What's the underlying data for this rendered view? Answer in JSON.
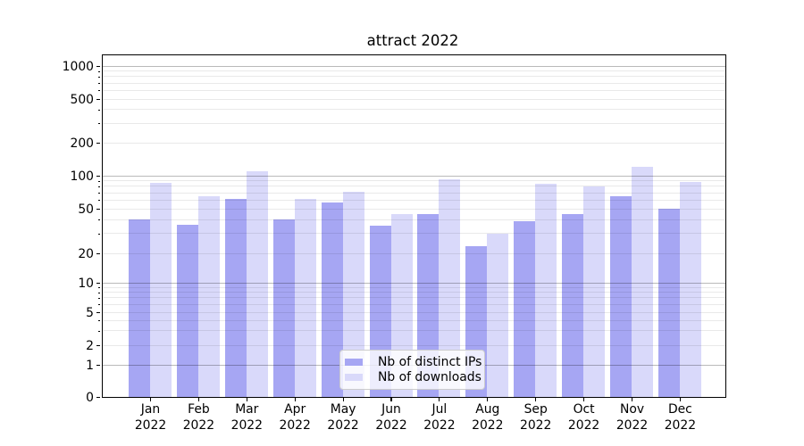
{
  "chart_data": {
    "type": "bar",
    "title": "attract 2022",
    "categories": [
      "Jan",
      "Feb",
      "Mar",
      "Apr",
      "May",
      "Jun",
      "Jul",
      "Aug",
      "Sep",
      "Oct",
      "Nov",
      "Dec"
    ],
    "year": "2022",
    "series": [
      {
        "name": "Nb of distinct IPs",
        "color": "#a6a6f3",
        "values": [
          40,
          36,
          61,
          40,
          57,
          35,
          45,
          23,
          39,
          45,
          65,
          50
        ]
      },
      {
        "name": "Nb of downloads",
        "color": "#d9d9fa",
        "values": [
          86,
          65,
          110,
          61,
          71,
          45,
          92,
          30,
          84,
          80,
          120,
          87
        ]
      }
    ],
    "yscale": "symlog",
    "yticks": [
      0,
      1,
      2,
      5,
      10,
      20,
      50,
      100,
      200,
      500,
      1000
    ],
    "ylim": [
      0,
      1000
    ],
    "xlabel": "",
    "ylabel": "",
    "grid": true,
    "legend_position": "lower center",
    "spine_color": "#000000",
    "major_grid_values": [
      1,
      10,
      100,
      1000
    ],
    "minor_grid_values": [
      2,
      3,
      4,
      5,
      6,
      7,
      8,
      9,
      20,
      30,
      40,
      50,
      60,
      70,
      80,
      90,
      200,
      300,
      400,
      500,
      600,
      700,
      800,
      900
    ]
  }
}
